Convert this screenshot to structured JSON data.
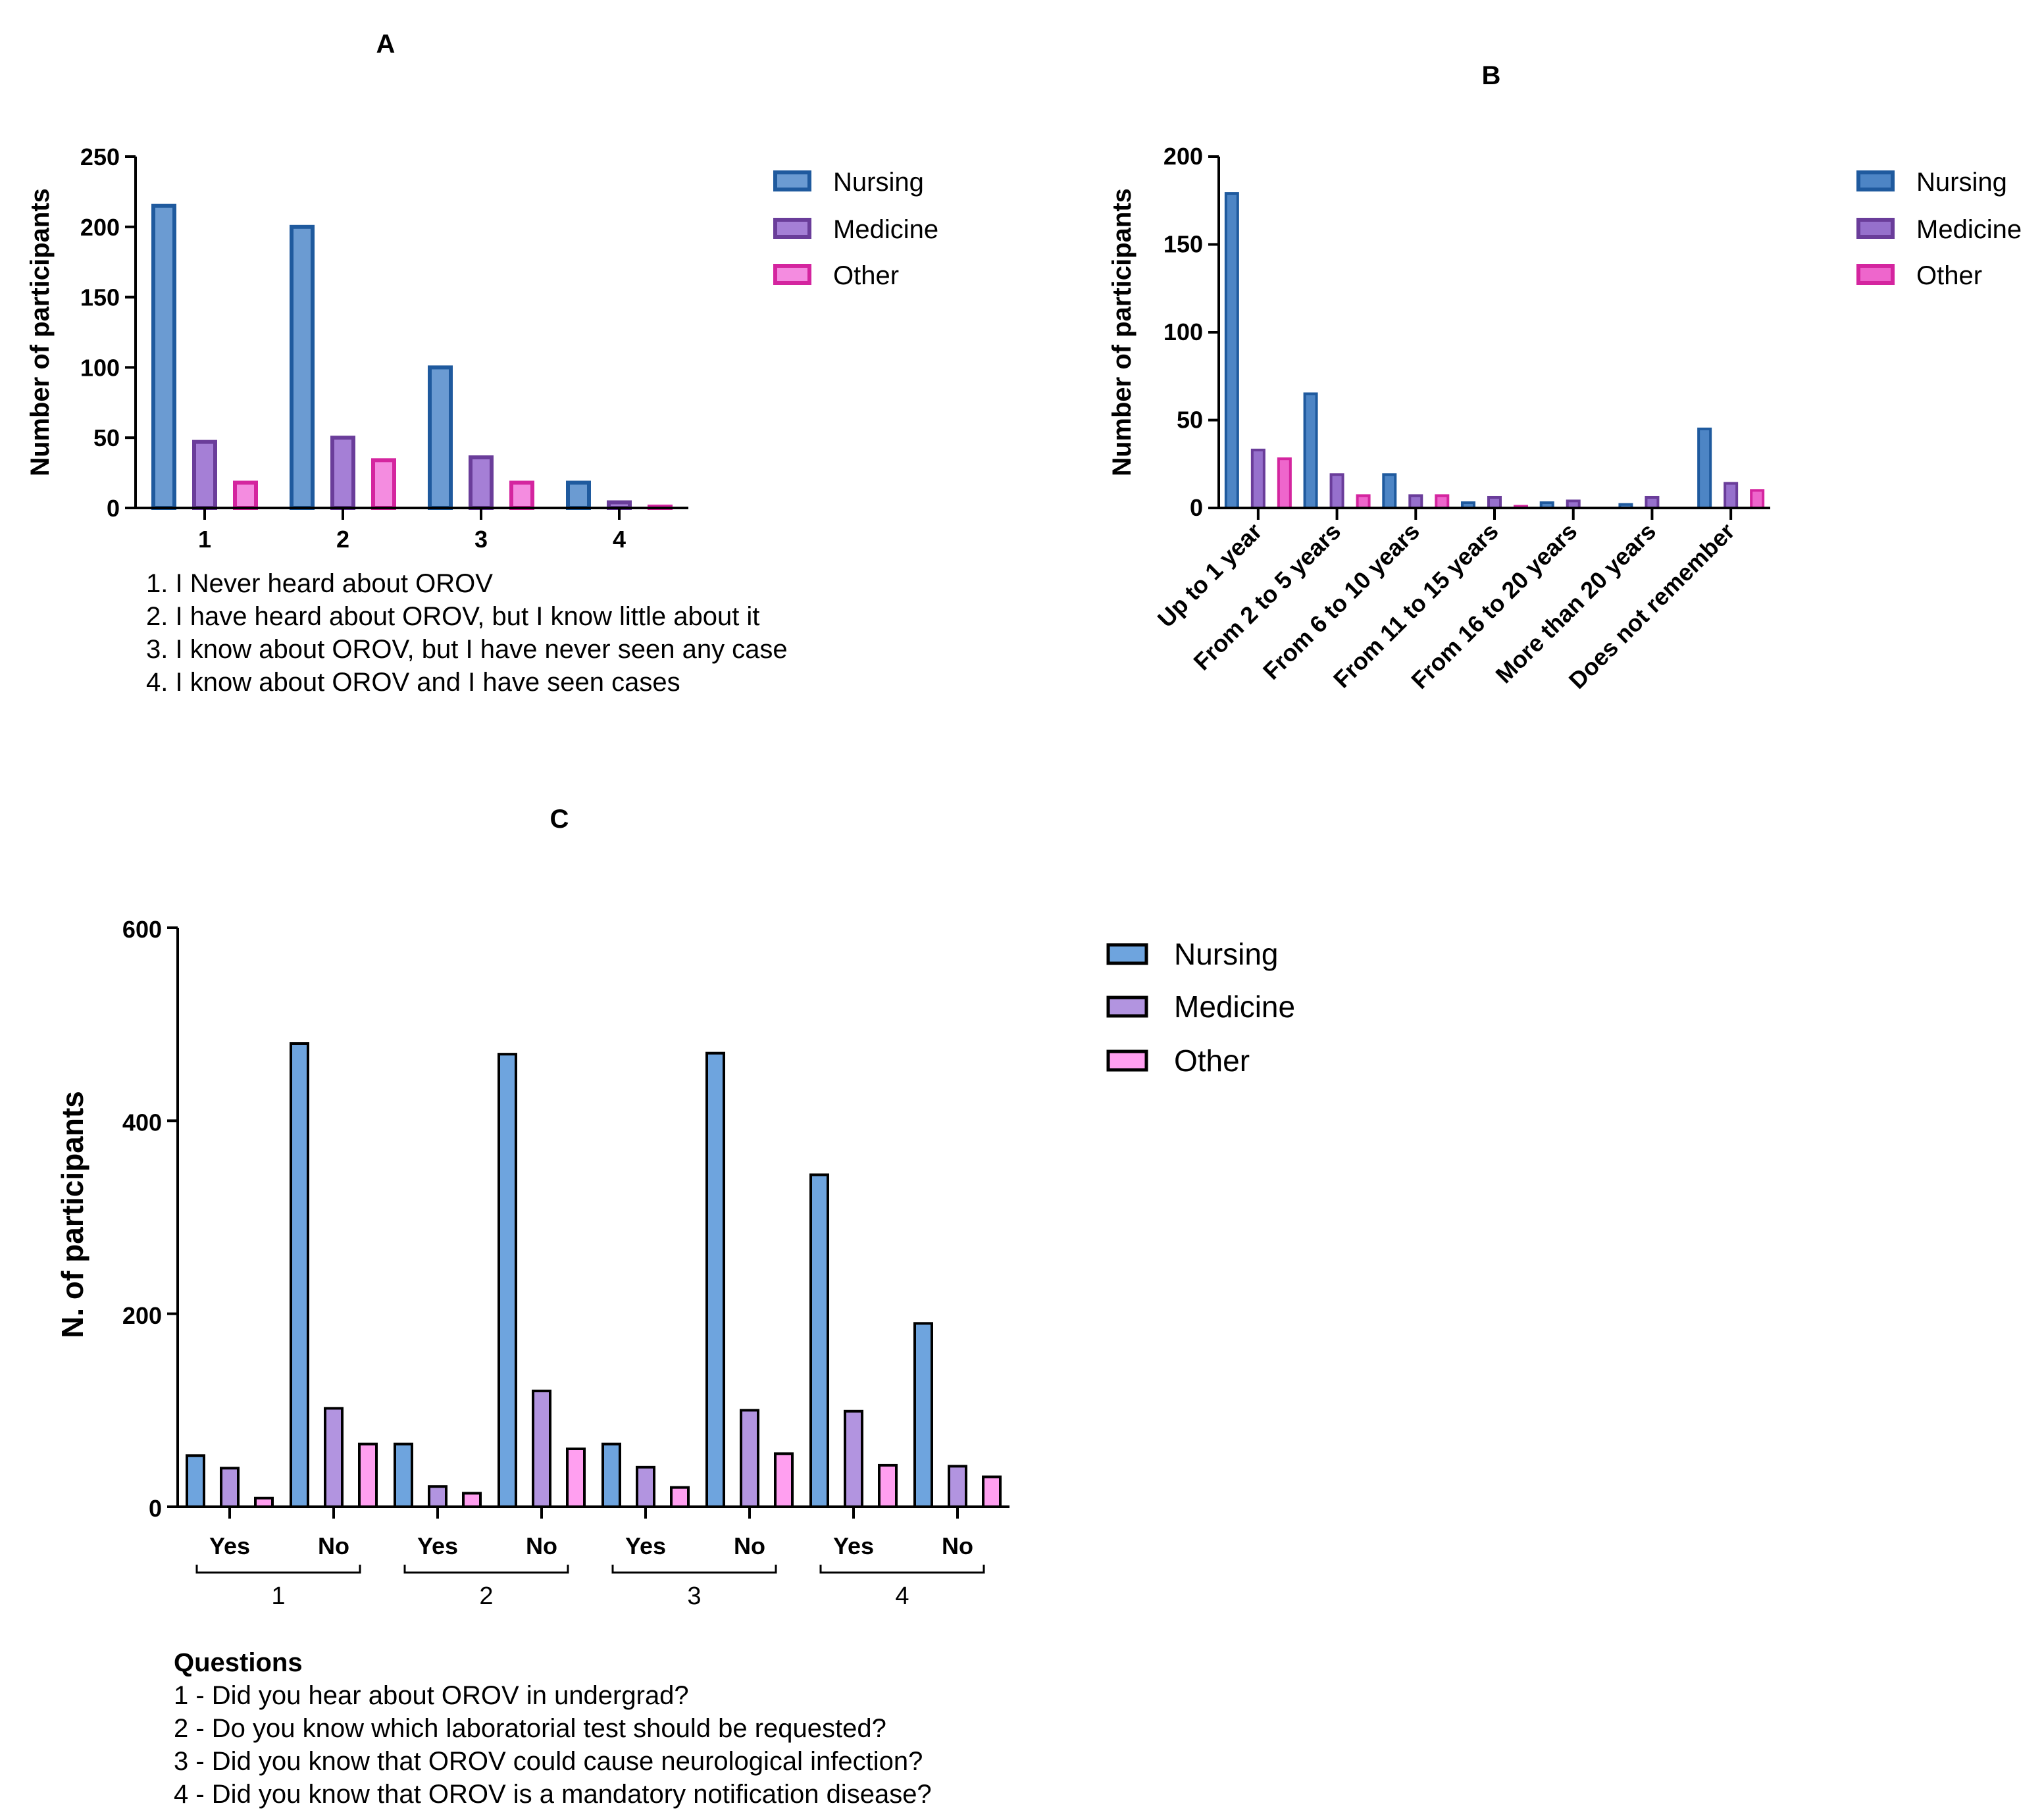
{
  "series_names": [
    "Nursing",
    "Medicine",
    "Other"
  ],
  "colors": {
    "panelA": {
      "fill": [
        "#6b9bd2",
        "#a57fd6",
        "#f48ce0"
      ],
      "stroke": [
        "#1f5a9e",
        "#6a3d9a",
        "#d4259f"
      ]
    },
    "panelB": {
      "fill": [
        "#4d85c5",
        "#9670cc",
        "#ee66cc"
      ],
      "stroke": [
        "#1f5a9e",
        "#6a3d9a",
        "#d4259f"
      ]
    },
    "panelC": {
      "fill": [
        "#6ea4de",
        "#b294e0",
        "#ff9ff0"
      ],
      "stroke": [
        "#000000",
        "#000000",
        "#000000"
      ]
    }
  },
  "chart_data": [
    {
      "id": "A",
      "type": "bar",
      "title": "A",
      "ylabel": "Number of participants",
      "xlabel": "",
      "ylim": [
        0,
        250
      ],
      "yticks": [
        0,
        50,
        100,
        150,
        200,
        250
      ],
      "categories": [
        "1",
        "2",
        "3",
        "4"
      ],
      "series": [
        {
          "name": "Nursing",
          "values": [
            215,
            200,
            100,
            18
          ]
        },
        {
          "name": "Medicine",
          "values": [
            47,
            50,
            36,
            4
          ]
        },
        {
          "name": "Other",
          "values": [
            18,
            34,
            18,
            1
          ]
        }
      ],
      "legend": [
        "Nursing",
        "Medicine",
        "Other"
      ],
      "notes": [
        "1. I Never heard about OROV",
        "2. I have heard about OROV, but I know little about it",
        "3. I know about OROV, but I have never seen any case",
        "4. I know about OROV and I have seen cases"
      ]
    },
    {
      "id": "B",
      "type": "bar",
      "title": "B",
      "ylabel": "Number of participants",
      "xlabel": "",
      "ylim": [
        0,
        200
      ],
      "yticks": [
        0,
        50,
        100,
        150,
        200
      ],
      "categories": [
        "Up to 1 year",
        "From 2 to 5 years",
        "From 6 to 10 years",
        "From 11 to 15 years",
        "From 16 to 20 years",
        "More than 20 years",
        "Does not remember"
      ],
      "series": [
        {
          "name": "Nursing",
          "values": [
            179,
            65,
            19,
            3,
            3,
            2,
            45
          ]
        },
        {
          "name": "Medicine",
          "values": [
            33,
            19,
            7,
            6,
            4,
            6,
            14
          ]
        },
        {
          "name": "Other",
          "values": [
            28,
            7,
            7,
            1,
            0,
            0,
            10
          ]
        }
      ],
      "legend": [
        "Nursing",
        "Medicine",
        "Other"
      ]
    },
    {
      "id": "C",
      "type": "bar",
      "title": "C",
      "ylabel": "N. of participants",
      "xlabel": "",
      "ylim": [
        0,
        600
      ],
      "yticks": [
        0,
        200,
        400,
        600
      ],
      "categories": [
        "Yes",
        "No",
        "Yes",
        "No",
        "Yes",
        "No",
        "Yes",
        "No"
      ],
      "groups": [
        "1",
        "2",
        "3",
        "4"
      ],
      "series": [
        {
          "name": "Nursing",
          "values": [
            53,
            480,
            65,
            469,
            65,
            470,
            344,
            190
          ]
        },
        {
          "name": "Medicine",
          "values": [
            40,
            102,
            21,
            120,
            41,
            100,
            99,
            42
          ]
        },
        {
          "name": "Other",
          "values": [
            9,
            65,
            14,
            60,
            20,
            55,
            43,
            31
          ]
        }
      ],
      "legend": [
        "Nursing",
        "Medicine",
        "Other"
      ],
      "notes_title": "Questions",
      "notes": [
        "1 - Did you hear about OROV in undergrad?",
        "2 - Do you know which laboratorial test should be requested?",
        "3 - Did you know that OROV could cause neurological infection?",
        "4 - Did you know that OROV is a mandatory notification disease?"
      ]
    }
  ]
}
